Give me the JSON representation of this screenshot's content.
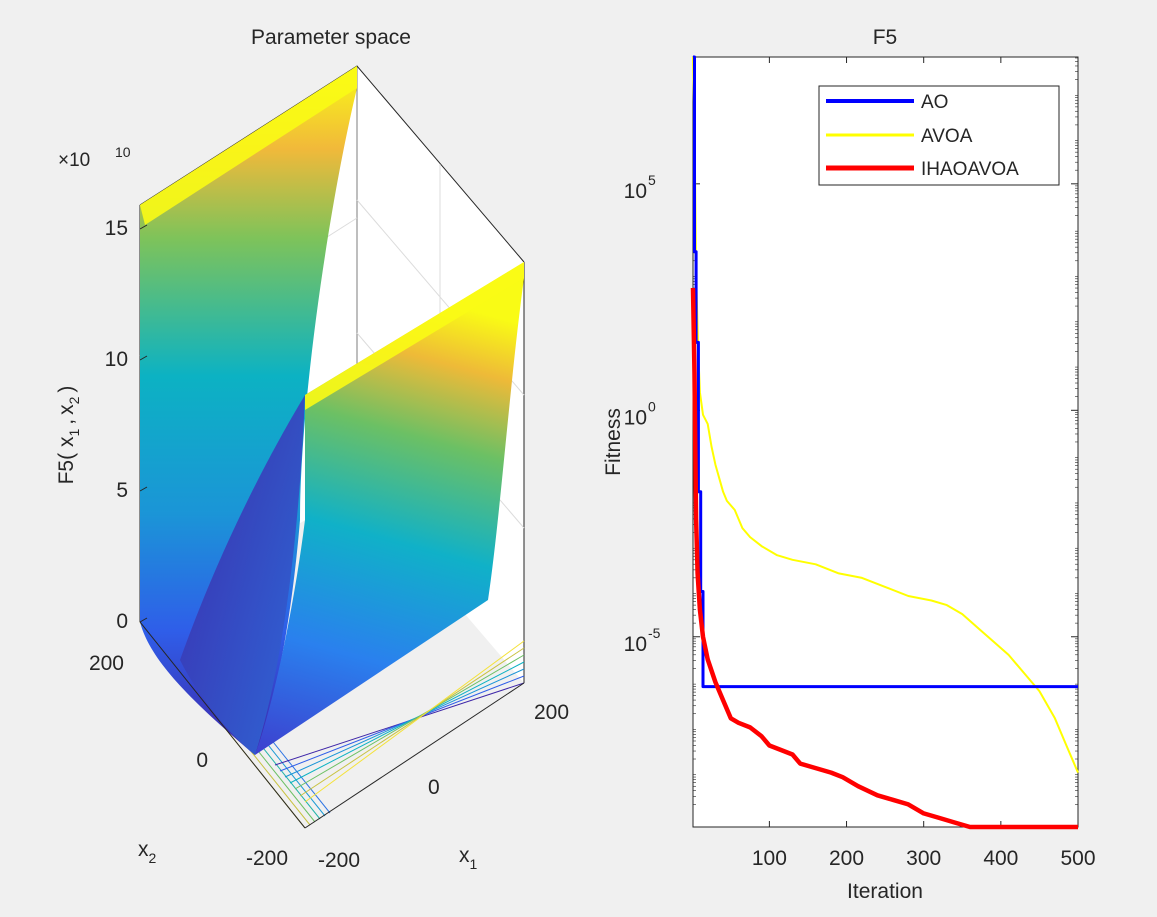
{
  "chart_data": [
    {
      "type": "surface3d",
      "title": "Parameter space",
      "zlabel_main": "F5(",
      "zlabel_x": "x",
      "zlabel_sub1": "1",
      "zlabel_comma": ",",
      "zlabel_sub2": "2",
      "zlabel_close": ")",
      "xlabel_main": "x",
      "xlabel_sub": "1",
      "ylabel_main": "x",
      "ylabel_sub": "2",
      "z_exponent_prefix": "×10",
      "z_exponent_power": "10",
      "z_ticks": [
        "0",
        "5",
        "10",
        "15"
      ],
      "x1_ticks": [
        "-200",
        "0",
        "200"
      ],
      "x2_ticks": [
        "-200",
        "0",
        "200"
      ],
      "x1_range": [
        -200,
        200
      ],
      "x2_range": [
        -200,
        200
      ],
      "z_range": [
        0,
        16
      ],
      "description_colormap": "parula"
    },
    {
      "type": "line",
      "title": "F5",
      "xlabel": "Iteration",
      "ylabel": "Fitness",
      "yscale": "log",
      "xlim": [
        1,
        500
      ],
      "ylim_log10": [
        -9.2,
        7.8
      ],
      "x_ticks": [
        100,
        200,
        300,
        400,
        500
      ],
      "x_tick_labels": [
        "100",
        "200",
        "300",
        "400",
        "500"
      ],
      "y_tick_exponents": [
        5,
        0,
        -5
      ],
      "y_tick_base": "10",
      "y_tick_exp_labels": [
        "5",
        "0",
        "-5"
      ],
      "legend_position": "top-right",
      "series": [
        {
          "name": "AO",
          "color": "#0000ff",
          "log10_points": [
            [
              1,
              7.8
            ],
            [
              3,
              7.8
            ],
            [
              3,
              3.5
            ],
            [
              5,
              3.5
            ],
            [
              5,
              1.5
            ],
            [
              8,
              1.5
            ],
            [
              8,
              -1.8
            ],
            [
              11,
              -1.8
            ],
            [
              11,
              -4.0
            ],
            [
              14,
              -4.0
            ],
            [
              14,
              -6.1
            ],
            [
              500,
              -6.1
            ]
          ]
        },
        {
          "name": "AVOA",
          "color": "#ffff00",
          "log10_points": [
            [
              1,
              7.8
            ],
            [
              3,
              6.3
            ],
            [
              5,
              3.0
            ],
            [
              8,
              1.2
            ],
            [
              10,
              0.4
            ],
            [
              14,
              -0.1
            ],
            [
              20,
              -0.3
            ],
            [
              25,
              -0.8
            ],
            [
              30,
              -1.2
            ],
            [
              40,
              -1.8
            ],
            [
              45,
              -2.0
            ],
            [
              55,
              -2.2
            ],
            [
              65,
              -2.6
            ],
            [
              75,
              -2.8
            ],
            [
              90,
              -3.0
            ],
            [
              110,
              -3.2
            ],
            [
              130,
              -3.3
            ],
            [
              160,
              -3.4
            ],
            [
              190,
              -3.6
            ],
            [
              220,
              -3.7
            ],
            [
              250,
              -3.9
            ],
            [
              280,
              -4.1
            ],
            [
              310,
              -4.2
            ],
            [
              330,
              -4.3
            ],
            [
              350,
              -4.5
            ],
            [
              370,
              -4.8
            ],
            [
              390,
              -5.1
            ],
            [
              410,
              -5.4
            ],
            [
              430,
              -5.8
            ],
            [
              450,
              -6.2
            ],
            [
              470,
              -6.8
            ],
            [
              485,
              -7.4
            ],
            [
              500,
              -8.0
            ]
          ]
        },
        {
          "name": "IHAOAVOA",
          "color": "#ff0000",
          "log10_points": [
            [
              1,
              2.7
            ],
            [
              3,
              0.8
            ],
            [
              5,
              -2.4
            ],
            [
              7,
              -3.6
            ],
            [
              10,
              -4.4
            ],
            [
              14,
              -5.0
            ],
            [
              20,
              -5.5
            ],
            [
              30,
              -6.0
            ],
            [
              40,
              -6.4
            ],
            [
              50,
              -6.8
            ],
            [
              60,
              -6.9
            ],
            [
              75,
              -7.0
            ],
            [
              90,
              -7.2
            ],
            [
              100,
              -7.4
            ],
            [
              115,
              -7.5
            ],
            [
              130,
              -7.6
            ],
            [
              140,
              -7.8
            ],
            [
              160,
              -7.9
            ],
            [
              180,
              -8.0
            ],
            [
              195,
              -8.1
            ],
            [
              215,
              -8.3
            ],
            [
              240,
              -8.5
            ],
            [
              260,
              -8.6
            ],
            [
              280,
              -8.7
            ],
            [
              300,
              -8.9
            ],
            [
              320,
              -9.0
            ],
            [
              340,
              -9.1
            ],
            [
              360,
              -9.2
            ],
            [
              380,
              -9.3
            ],
            [
              420,
              -9.4
            ],
            [
              460,
              -9.5
            ],
            [
              480,
              -9.55
            ],
            [
              500,
              -9.6
            ]
          ]
        }
      ]
    }
  ]
}
